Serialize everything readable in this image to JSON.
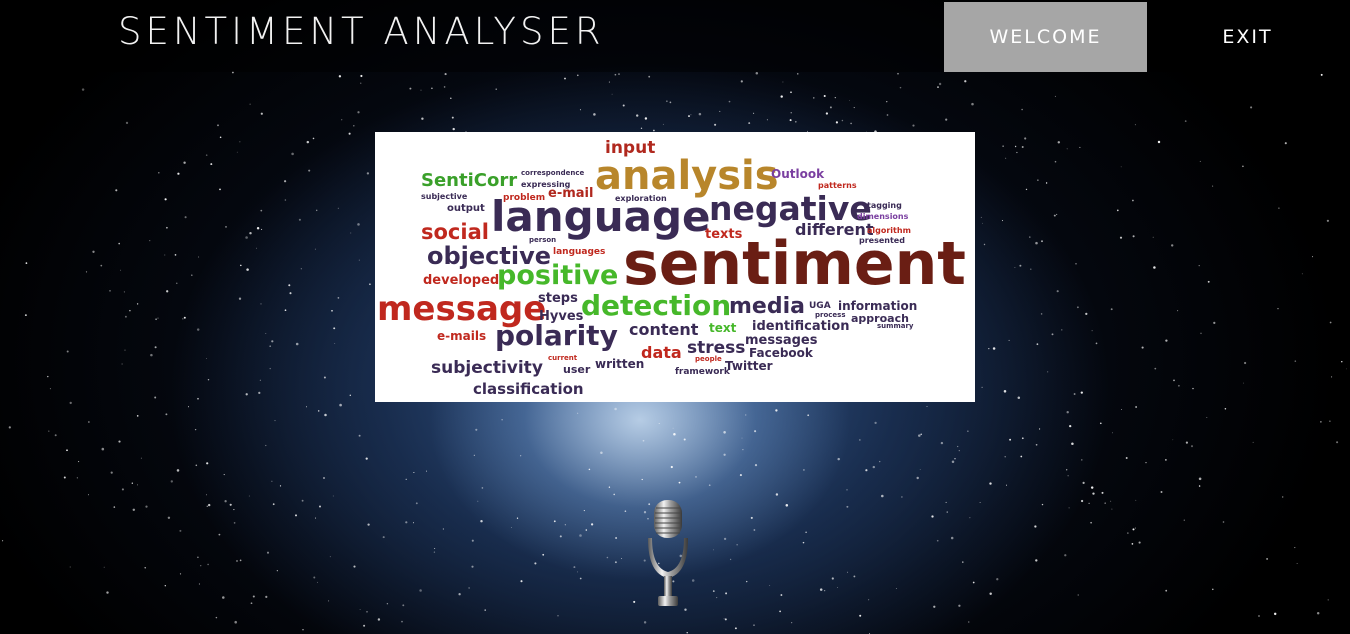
{
  "header": {
    "title": "SENTIMENT ANALYSER",
    "nav": {
      "welcome": "WELCOME",
      "exit": "EXIT"
    }
  },
  "word_cloud": {
    "words": [
      {
        "text": "input",
        "color": "#b0281e"
      },
      {
        "text": "analysis",
        "color": "#b8862b"
      },
      {
        "text": "Outlook",
        "color": "#7a3fa0"
      },
      {
        "text": "SentiCorr",
        "color": "#3aa02a"
      },
      {
        "text": "e-mail",
        "color": "#b0281e"
      },
      {
        "text": "language",
        "color": "#3a2b55"
      },
      {
        "text": "negative",
        "color": "#3a2b55"
      },
      {
        "text": "social",
        "color": "#c0281e"
      },
      {
        "text": "texts",
        "color": "#c0281e"
      },
      {
        "text": "different",
        "color": "#3a2b55"
      },
      {
        "text": "objective",
        "color": "#3a2b55"
      },
      {
        "text": "sentiment",
        "color": "#6a1e14"
      },
      {
        "text": "positive",
        "color": "#46b82a"
      },
      {
        "text": "developed",
        "color": "#c0281e"
      },
      {
        "text": "message",
        "color": "#c0281e"
      },
      {
        "text": "steps",
        "color": "#3a2b55"
      },
      {
        "text": "detection",
        "color": "#46b82a"
      },
      {
        "text": "media",
        "color": "#3a2b55"
      },
      {
        "text": "information",
        "color": "#3a2b55"
      },
      {
        "text": "Hyves",
        "color": "#3a2b55"
      },
      {
        "text": "approach",
        "color": "#3a2b55"
      },
      {
        "text": "e-mails",
        "color": "#c0281e"
      },
      {
        "text": "polarity",
        "color": "#3a2b55"
      },
      {
        "text": "content",
        "color": "#3a2b55"
      },
      {
        "text": "text",
        "color": "#46b82a"
      },
      {
        "text": "identification",
        "color": "#3a2b55"
      },
      {
        "text": "messages",
        "color": "#3a2b55"
      },
      {
        "text": "stress",
        "color": "#3a2b55"
      },
      {
        "text": "data",
        "color": "#c0281e"
      },
      {
        "text": "Facebook",
        "color": "#3a2b55"
      },
      {
        "text": "subjectivity",
        "color": "#3a2b55"
      },
      {
        "text": "written",
        "color": "#3a2b55"
      },
      {
        "text": "Twitter",
        "color": "#3a2b55"
      },
      {
        "text": "user",
        "color": "#3a2b55"
      },
      {
        "text": "framework",
        "color": "#3a2b55"
      },
      {
        "text": "classification",
        "color": "#3a2b55"
      },
      {
        "text": "output",
        "color": "#3a2b55"
      },
      {
        "text": "problem",
        "color": "#c0281e"
      },
      {
        "text": "subjective",
        "color": "#3a2b55"
      },
      {
        "text": "expressing",
        "color": "#3a2b55"
      },
      {
        "text": "exploration",
        "color": "#3a2b55"
      },
      {
        "text": "patterns",
        "color": "#c0281e"
      },
      {
        "text": "tagging",
        "color": "#3a2b55"
      },
      {
        "text": "dimensions",
        "color": "#7a3fa0"
      },
      {
        "text": "algorithm",
        "color": "#c0281e"
      },
      {
        "text": "presented",
        "color": "#3a2b55"
      },
      {
        "text": "languages",
        "color": "#c0281e"
      },
      {
        "text": "person",
        "color": "#3a2b55"
      },
      {
        "text": "current",
        "color": "#c0281e"
      },
      {
        "text": "people",
        "color": "#c0281e"
      },
      {
        "text": "correspondence",
        "color": "#3a2b55"
      },
      {
        "text": "process",
        "color": "#3a2b55"
      },
      {
        "text": "UGA",
        "color": "#3a2b55"
      },
      {
        "text": "summary",
        "color": "#3a2b55"
      }
    ]
  },
  "icons": {
    "microphone": "microphone-icon"
  }
}
